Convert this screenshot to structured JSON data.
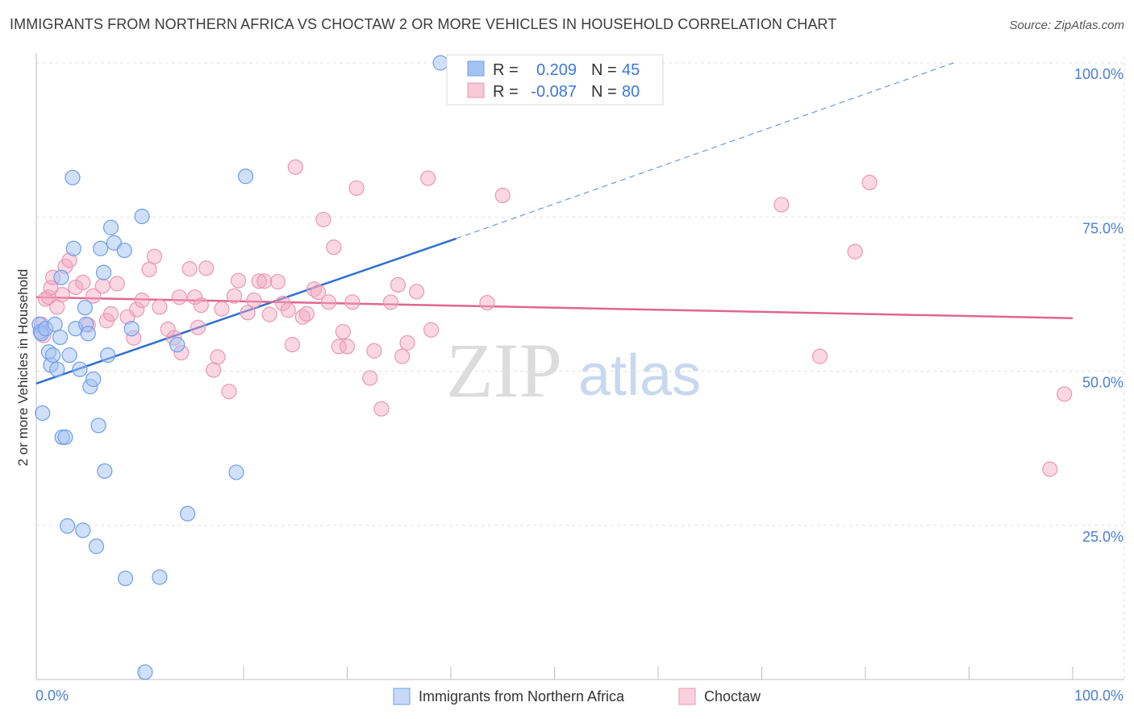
{
  "title": "IMMIGRANTS FROM NORTHERN AFRICA VS CHOCTAW 2 OR MORE VEHICLES IN HOUSEHOLD CORRELATION CHART",
  "source": "Source: ZipAtlas.com",
  "watermark": {
    "zip": "ZIP",
    "atlas": "atlas"
  },
  "stats": [
    {
      "r_label": "R =",
      "r_value": "0.209",
      "n_label": "N =",
      "n_value": "45"
    },
    {
      "r_label": "R =",
      "r_value": "-0.087",
      "n_label": "N =",
      "n_value": "80"
    }
  ],
  "chart_data": {
    "type": "scatter",
    "title": "IMMIGRANTS FROM NORTHERN AFRICA VS CHOCTAW 2 OR MORE VEHICLES IN HOUSEHOLD CORRELATION CHART",
    "xlabel": "",
    "ylabel": "2 or more Vehicles in Household",
    "xlim": [
      0,
      100
    ],
    "ylim": [
      0,
      100
    ],
    "x_tick_labels": [
      "0.0%",
      "100.0%"
    ],
    "y_tick_labels": [
      "25.0%",
      "50.0%",
      "75.0%",
      "100.0%"
    ],
    "y_ticks": [
      25,
      50,
      75,
      100
    ],
    "grid": true,
    "legend_position": "bottom",
    "colors": {
      "series1": "#a4c2f4",
      "series1_line": "#2f6fd0",
      "series2": "#f4a7c0",
      "series2_line": "#e0668f"
    },
    "series": [
      {
        "name": "Immigrants from Northern Africa",
        "trend": {
          "x0": 0.0,
          "y0": 48.0,
          "x1": 40.5,
          "y1": 71.5,
          "dash_to_x": 88.5,
          "dash_to_y": 100.0
        },
        "points": [
          [
            0.3,
            57.6
          ],
          [
            0.4,
            56.4
          ],
          [
            0.5,
            56.1
          ],
          [
            0.6,
            43.2
          ],
          [
            0.9,
            56.9
          ],
          [
            1.2,
            53.1
          ],
          [
            1.4,
            51.0
          ],
          [
            1.6,
            52.6
          ],
          [
            1.8,
            57.6
          ],
          [
            2.0,
            50.3
          ],
          [
            2.3,
            55.5
          ],
          [
            2.4,
            65.2
          ],
          [
            2.5,
            39.3
          ],
          [
            2.8,
            39.3
          ],
          [
            3.0,
            24.9
          ],
          [
            3.2,
            52.6
          ],
          [
            3.5,
            81.4
          ],
          [
            3.6,
            69.9
          ],
          [
            3.8,
            56.9
          ],
          [
            4.2,
            50.3
          ],
          [
            4.5,
            24.2
          ],
          [
            4.7,
            60.3
          ],
          [
            4.8,
            57.6
          ],
          [
            5.0,
            56.1
          ],
          [
            5.2,
            47.5
          ],
          [
            5.5,
            48.7
          ],
          [
            5.8,
            21.6
          ],
          [
            6.0,
            41.2
          ],
          [
            6.2,
            69.9
          ],
          [
            6.5,
            66.0
          ],
          [
            6.6,
            33.8
          ],
          [
            6.9,
            52.6
          ],
          [
            7.2,
            73.3
          ],
          [
            7.5,
            70.8
          ],
          [
            8.5,
            69.6
          ],
          [
            8.6,
            16.4
          ],
          [
            9.2,
            56.9
          ],
          [
            10.2,
            75.1
          ],
          [
            10.5,
            1.2
          ],
          [
            11.9,
            16.6
          ],
          [
            13.6,
            54.3
          ],
          [
            14.6,
            26.9
          ],
          [
            19.3,
            33.6
          ],
          [
            20.2,
            81.6
          ],
          [
            39.0,
            100.0
          ]
        ]
      },
      {
        "name": "Choctaw",
        "trend": {
          "x0": 0.0,
          "y0": 62.0,
          "x1": 100.0,
          "y1": 58.6
        },
        "points": [
          [
            0.5,
            57.6
          ],
          [
            0.7,
            55.8
          ],
          [
            0.9,
            61.7
          ],
          [
            1.2,
            62.0
          ],
          [
            1.4,
            63.5
          ],
          [
            1.6,
            65.2
          ],
          [
            2.0,
            60.4
          ],
          [
            2.5,
            62.4
          ],
          [
            2.8,
            67.0
          ],
          [
            3.2,
            68.0
          ],
          [
            3.8,
            63.6
          ],
          [
            4.5,
            64.4
          ],
          [
            5.0,
            57.5
          ],
          [
            5.5,
            62.2
          ],
          [
            6.4,
            63.8
          ],
          [
            6.8,
            58.2
          ],
          [
            7.2,
            59.3
          ],
          [
            7.8,
            64.2
          ],
          [
            8.8,
            58.8
          ],
          [
            9.4,
            55.4
          ],
          [
            9.7,
            60.0
          ],
          [
            10.2,
            61.5
          ],
          [
            10.9,
            66.5
          ],
          [
            11.4,
            68.6
          ],
          [
            11.9,
            60.4
          ],
          [
            12.7,
            56.8
          ],
          [
            13.3,
            55.4
          ],
          [
            13.8,
            62.0
          ],
          [
            14.0,
            53.0
          ],
          [
            14.8,
            66.6
          ],
          [
            15.3,
            62.0
          ],
          [
            15.6,
            57.1
          ],
          [
            15.9,
            60.7
          ],
          [
            16.4,
            66.7
          ],
          [
            17.1,
            50.2
          ],
          [
            17.5,
            52.3
          ],
          [
            17.9,
            60.1
          ],
          [
            18.6,
            46.7
          ],
          [
            19.1,
            62.2
          ],
          [
            19.5,
            64.7
          ],
          [
            20.4,
            59.5
          ],
          [
            21.0,
            61.5
          ],
          [
            21.5,
            64.6
          ],
          [
            22.0,
            64.6
          ],
          [
            22.5,
            59.2
          ],
          [
            23.3,
            64.5
          ],
          [
            23.8,
            61.0
          ],
          [
            24.3,
            59.9
          ],
          [
            24.7,
            54.3
          ],
          [
            25.0,
            83.1
          ],
          [
            25.7,
            58.8
          ],
          [
            26.1,
            59.3
          ],
          [
            26.8,
            63.3
          ],
          [
            27.2,
            62.8
          ],
          [
            27.7,
            74.6
          ],
          [
            28.2,
            61.2
          ],
          [
            28.7,
            70.1
          ],
          [
            29.2,
            54.0
          ],
          [
            29.6,
            56.4
          ],
          [
            30.0,
            54.0
          ],
          [
            30.5,
            61.2
          ],
          [
            30.9,
            79.7
          ],
          [
            32.2,
            48.9
          ],
          [
            32.6,
            53.3
          ],
          [
            33.3,
            43.9
          ],
          [
            34.2,
            61.2
          ],
          [
            34.9,
            64.0
          ],
          [
            35.3,
            52.4
          ],
          [
            35.8,
            54.6
          ],
          [
            36.7,
            62.9
          ],
          [
            37.8,
            81.3
          ],
          [
            38.1,
            56.7
          ],
          [
            43.5,
            61.1
          ],
          [
            45.0,
            78.5
          ],
          [
            71.9,
            77.0
          ],
          [
            75.6,
            52.4
          ],
          [
            79.0,
            69.4
          ],
          [
            80.4,
            80.6
          ],
          [
            97.8,
            34.1
          ],
          [
            99.2,
            46.3
          ]
        ]
      }
    ]
  }
}
